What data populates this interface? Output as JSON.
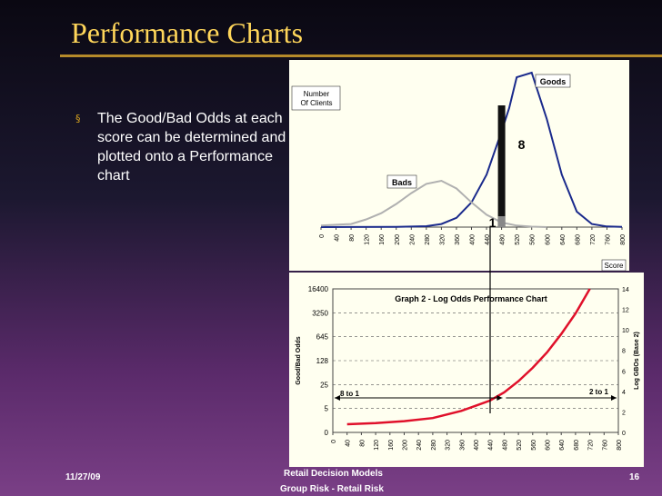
{
  "slide": {
    "title": "Performance Charts",
    "bullet": "The Good/Bad Odds at each score can be determined and plotted onto a Performance chart",
    "footer_date": "11/27/09",
    "footer_center_line1": "Retail Decision Models",
    "footer_center_line2": "Group Risk - Retail Risk",
    "page_number": "16"
  },
  "colors": {
    "title": "#ffd65a",
    "goods_curve": "#1a2a8c",
    "bads_curve": "#b0b0b0",
    "odds_curve": "#e0102a",
    "panel": "#fffff0"
  },
  "chart_data": [
    {
      "type": "line",
      "x_ticks": [
        "0",
        "40",
        "80",
        "120",
        "160",
        "200",
        "240",
        "280",
        "320",
        "360",
        "400",
        "440",
        "480",
        "520",
        "560",
        "600",
        "640",
        "680",
        "720",
        "760",
        "800"
      ],
      "ylabel": "Number Of Clients",
      "xlabel": "Score",
      "series": [
        {
          "name": "Goods",
          "x": [
            0,
            200,
            280,
            320,
            360,
            400,
            440,
            480,
            500,
            520,
            560,
            600,
            640,
            680,
            720,
            760,
            800
          ],
          "y": [
            0,
            0.1,
            0.6,
            2,
            6,
            16,
            34,
            62,
            77,
            97,
            100,
            70,
            34,
            10,
            2,
            0.4,
            0.1
          ]
        },
        {
          "name": "Bads",
          "x": [
            0,
            80,
            120,
            160,
            200,
            240,
            280,
            320,
            360,
            400,
            440,
            480,
            520,
            560,
            600
          ],
          "y": [
            1,
            2,
            5,
            9,
            15,
            22,
            28,
            30,
            25,
            16,
            8,
            3,
            1,
            0.3,
            0
          ]
        }
      ],
      "annotations": [
        "8",
        "1"
      ]
    },
    {
      "type": "line",
      "title": "Graph 2 - Log Odds Performance Chart",
      "ylabel": "Good/Bad Odds",
      "y2label": "Log GBOs (Base 2)",
      "y_ticks_left": [
        "0",
        "5",
        "25",
        "128",
        "645",
        "3250",
        "16400"
      ],
      "y_ticks_right": [
        "0",
        "2",
        "4",
        "6",
        "8",
        "10",
        "12",
        "14"
      ],
      "x_ticks": [
        "0",
        "40",
        "80",
        "120",
        "160",
        "200",
        "240",
        "280",
        "320",
        "360",
        "400",
        "440",
        "480",
        "520",
        "560",
        "600",
        "640",
        "680",
        "720",
        "760",
        "800"
      ],
      "ylim_right": [
        0,
        14
      ],
      "series": [
        {
          "name": "Log GBO",
          "x": [
            40,
            120,
            200,
            280,
            360,
            400,
            440,
            480,
            520,
            560,
            600,
            640,
            680,
            720
          ],
          "y": [
            0.8,
            0.9,
            1.1,
            1.4,
            2.1,
            2.6,
            3.1,
            3.9,
            5,
            6.3,
            7.8,
            9.6,
            11.6,
            14
          ]
        }
      ],
      "annotations": [
        "8 to 1",
        "2  to 1"
      ]
    }
  ]
}
